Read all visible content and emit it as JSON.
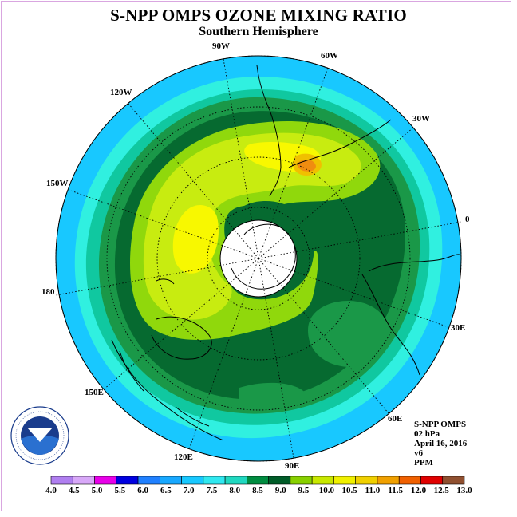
{
  "title": "S-NPP OMPS OZONE MIXING RATIO",
  "subtitle": "Southern Hemisphere",
  "longitude_labels": [
    "90W",
    "60W",
    "120W",
    "30W",
    "150W",
    "0",
    "180",
    "30E",
    "150E",
    "60E",
    "120E",
    "90E"
  ],
  "info": {
    "instrument": "S-NPP OMPS",
    "level": "02 hPa",
    "date": "April 16, 2016",
    "version": "v6",
    "units": "PPM"
  },
  "logo": {
    "text": "NOAA",
    "ring_text": "NATIONAL OCEANIC AND ATMOSPHERIC ADMINISTRATION · U.S. DEPARTMENT OF COMMERCE"
  },
  "colorbar": {
    "ticks": [
      "4.0",
      "4.5",
      "5.0",
      "5.5",
      "6.0",
      "6.5",
      "7.0",
      "7.5",
      "8.0",
      "8.5",
      "9.0",
      "9.5",
      "10.0",
      "10.5",
      "11.0",
      "11.5",
      "12.0",
      "12.5",
      "13.0"
    ],
    "colors": [
      "#b07ff0",
      "#d8a8f8",
      "#e800e8",
      "#0000e0",
      "#2080ff",
      "#18a8ff",
      "#18c8ff",
      "#30e8f0",
      "#20d8c0",
      "#008c40",
      "#005c28",
      "#88d000",
      "#c8e800",
      "#f0f000",
      "#f0d000",
      "#f0a000",
      "#f06000",
      "#e00000",
      "#905030"
    ]
  },
  "colors": {
    "band_7_0": "#18c8ff",
    "band_7_5": "#30f0e0",
    "band_8_0": "#10c8a0",
    "band_8_5": "#1a9848",
    "band_9_0": "#066a30",
    "band_9_5": "#90d80c",
    "band_10_0": "#c8ec10",
    "band_10_5": "#f8f800",
    "band_11_0": "#f0c000",
    "band_11_5": "#f08c10",
    "pole_hole": "#ffffff"
  }
}
